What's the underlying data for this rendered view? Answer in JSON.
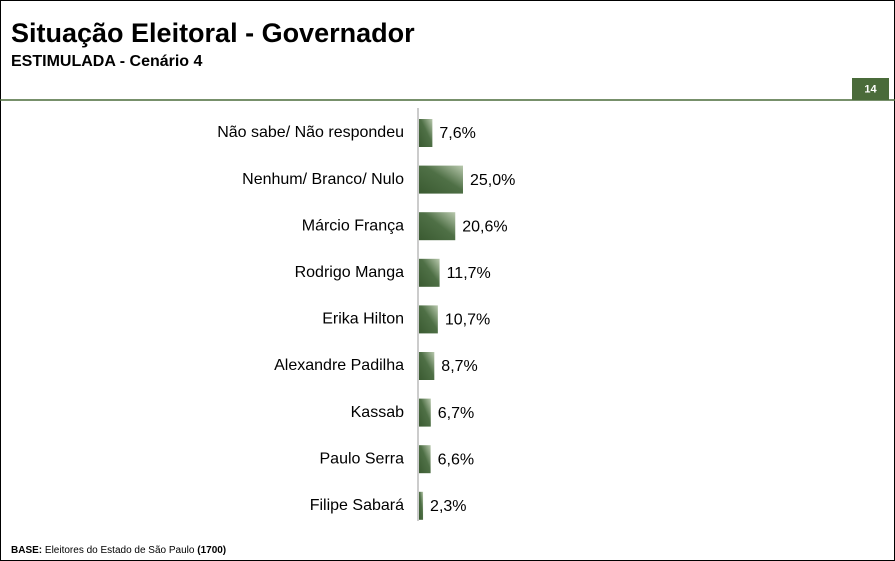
{
  "chart_data": {
    "type": "bar",
    "orientation": "horizontal",
    "title": "Situação Eleitoral - Governador",
    "subtitle": "ESTIMULADA - Cenário 4",
    "page_number": "14",
    "categories": [
      "Não sabe/ Não respondeu",
      "Nenhum/ Branco/ Nulo",
      "Márcio França",
      "Rodrigo Manga",
      "Erika Hilton",
      "Alexandre Padilha",
      "Kassab",
      "Paulo Serra",
      "Filipe Sabará"
    ],
    "values": [
      7.6,
      25.0,
      20.6,
      11.7,
      10.7,
      8.7,
      6.7,
      6.6,
      2.3
    ],
    "value_labels": [
      "7,6%",
      "25,0%",
      "20,6%",
      "11,7%",
      "10,7%",
      "8,7%",
      "6,7%",
      "6,6%",
      "2,3%"
    ],
    "color": "#3f6137",
    "footer": {
      "label": "BASE:",
      "text": "Eleitores do Estado de São Paulo",
      "sample": "(1700)"
    }
  }
}
